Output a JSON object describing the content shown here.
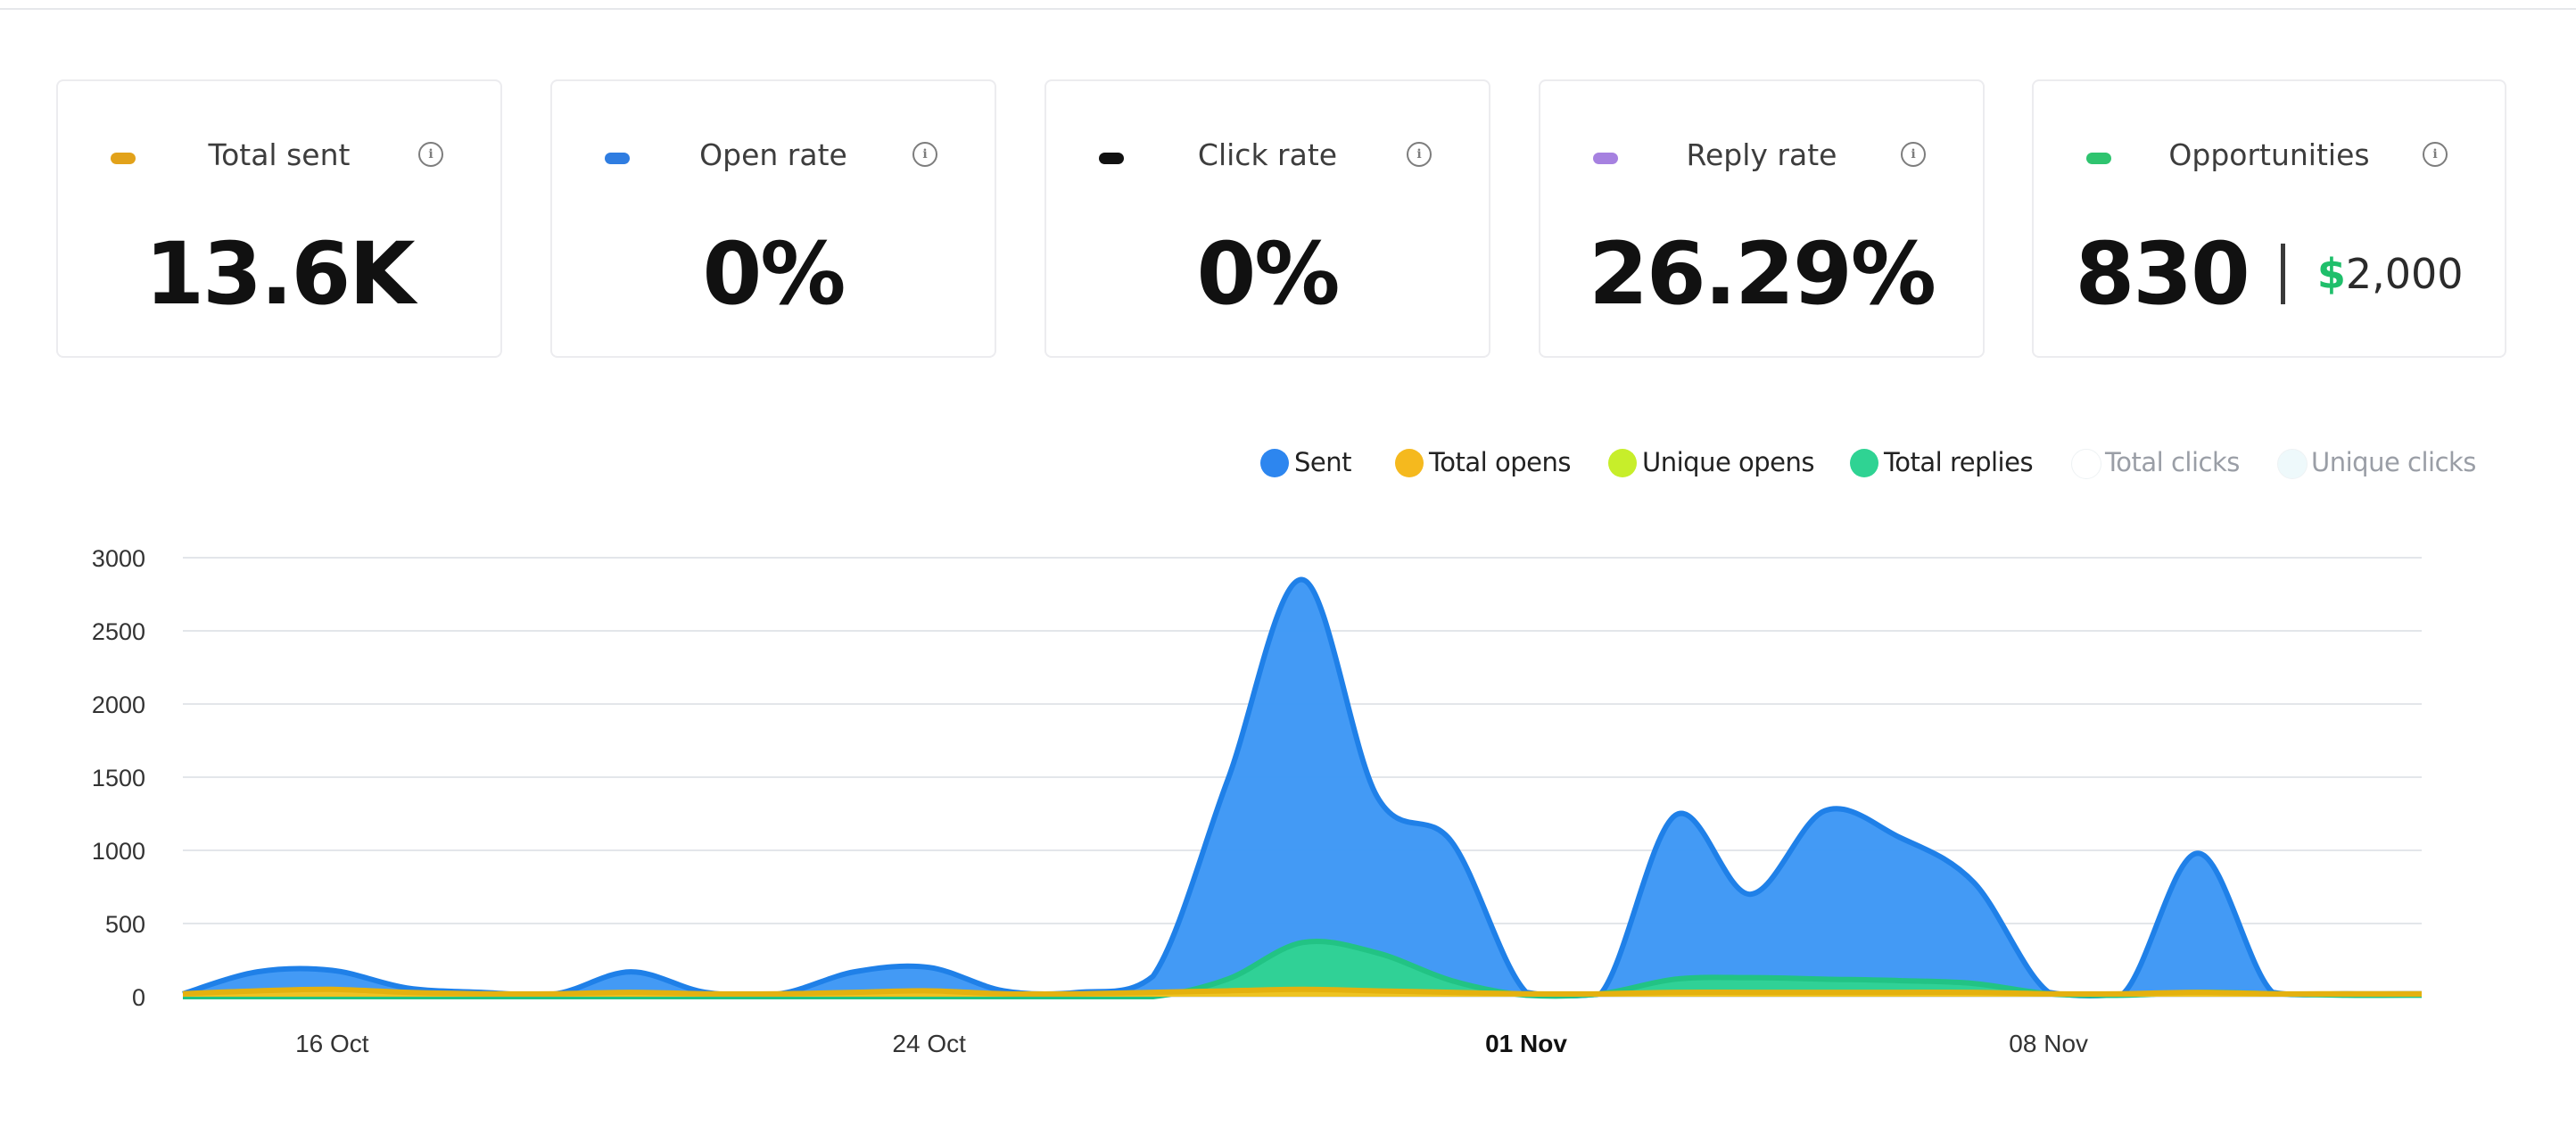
{
  "cards": [
    {
      "label": "Total sent",
      "value": "13.6K",
      "dot_color": "#e2a21a",
      "info_icon": "info-icon"
    },
    {
      "label": "Open rate",
      "value": "0%",
      "dot_color": "#2f7de1",
      "info_icon": "info-icon"
    },
    {
      "label": "Click rate",
      "value": "0%",
      "dot_color": "#111111",
      "info_icon": "info-icon"
    },
    {
      "label": "Reply rate",
      "value": "26.29%",
      "dot_color": "#a681e0",
      "info_icon": "info-icon"
    },
    {
      "label": "Opportunities",
      "value": "830",
      "money_currency": "$",
      "money_amount": "2,000",
      "dot_color": "#2fc46f",
      "info_icon": "info-icon"
    }
  ],
  "legend": [
    {
      "label": "Sent",
      "color": "#2d86ef",
      "active": true
    },
    {
      "label": "Total opens",
      "color": "#f5b91e",
      "active": true
    },
    {
      "label": "Unique opens",
      "color": "#c7ee2a",
      "active": true
    },
    {
      "label": "Total replies",
      "color": "#2fd393",
      "active": true
    },
    {
      "label": "Total clicks",
      "color": "#ffffff",
      "active": false
    },
    {
      "label": "Unique clicks",
      "color": "#eef9fb",
      "active": false
    }
  ],
  "chart_data": {
    "type": "area",
    "x": [
      "14 Oct",
      "15 Oct",
      "16 Oct",
      "17 Oct",
      "18 Oct",
      "19 Oct",
      "20 Oct",
      "21 Oct",
      "22 Oct",
      "23 Oct",
      "24 Oct",
      "25 Oct",
      "26 Oct",
      "27 Oct",
      "28 Oct",
      "29 Oct",
      "30 Oct",
      "31 Oct",
      "01 Nov",
      "02 Nov",
      "03 Nov",
      "04 Nov",
      "05 Nov",
      "06 Nov",
      "07 Nov",
      "08 Nov",
      "09 Nov",
      "10 Nov",
      "11 Nov",
      "12 Nov",
      "13 Nov"
    ],
    "xticks": [
      "16 Oct",
      "24 Oct",
      "01 Nov",
      "08 Nov"
    ],
    "xtick_emphasis": "01 Nov",
    "yticks": [
      0,
      500,
      1000,
      1500,
      2000,
      2500,
      3000
    ],
    "ylim": [
      0,
      3000
    ],
    "series": [
      {
        "name": "Sent",
        "color": "#3d97f5",
        "stroke": "#1f80e8",
        "values": [
          20,
          170,
          180,
          60,
          30,
          20,
          170,
          30,
          20,
          170,
          200,
          40,
          30,
          140,
          1480,
          2850,
          1370,
          1060,
          30,
          20,
          1240,
          700,
          1270,
          1090,
          780,
          30,
          20,
          980,
          30,
          20,
          20
        ]
      },
      {
        "name": "Total replies",
        "color": "#2fd393",
        "stroke": "#22c384",
        "values": [
          0,
          0,
          0,
          0,
          0,
          0,
          0,
          0,
          0,
          0,
          0,
          0,
          0,
          0,
          120,
          370,
          300,
          110,
          10,
          20,
          120,
          130,
          120,
          110,
          90,
          20,
          10,
          30,
          20,
          10,
          10
        ]
      },
      {
        "name": "Total opens",
        "color": "#f5c21e",
        "stroke": "#e4b10f",
        "values": [
          20,
          40,
          50,
          30,
          20,
          20,
          30,
          20,
          20,
          30,
          40,
          20,
          20,
          30,
          40,
          50,
          40,
          30,
          20,
          20,
          30,
          30,
          30,
          30,
          30,
          20,
          20,
          30,
          20,
          20,
          20
        ]
      }
    ]
  }
}
